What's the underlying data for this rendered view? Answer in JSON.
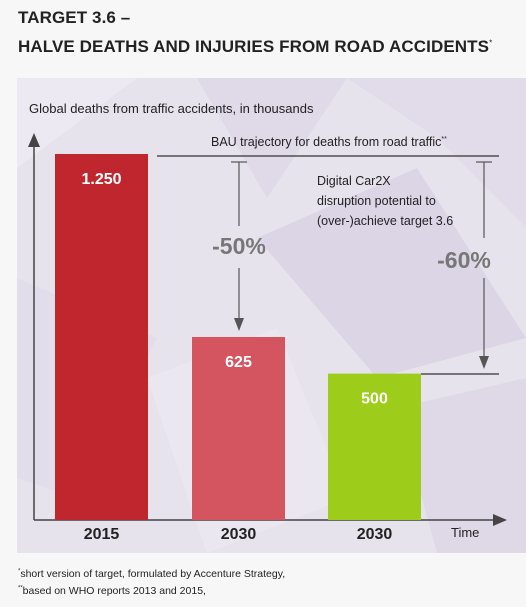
{
  "header": {
    "line1": "TARGET 3.6 –",
    "line2": "HALVE DEATHS AND INJURIES FROM ROAD ACCIDENTS",
    "line2_mark": "*"
  },
  "chart_data": {
    "type": "bar",
    "ylabel": "Global deaths from traffic accidents, in thousands",
    "xlabel": "Time",
    "categories": [
      "2015",
      "2030",
      "2030"
    ],
    "values": [
      1250,
      625,
      500
    ],
    "value_labels": [
      "1.250",
      "625",
      "500"
    ],
    "bar_colors": [
      "#c0262d",
      "#d45560",
      "#9dcc1a"
    ],
    "ylim": [
      0,
      1250
    ],
    "annotations": {
      "bau_label": "BAU trajectory for deaths from road traffic",
      "bau_mark": "**",
      "reduction_50": "-50%",
      "reduction_60": "-60%",
      "car2x_lines": [
        "Digital Car2X",
        "disruption potential to",
        "(over-)achieve target 3.6"
      ]
    }
  },
  "footnotes": {
    "note1_mark": "*",
    "note1": "short version of target, formulated by Accenture Strategy,",
    "note2_mark": "**",
    "note2": "based on WHO reports 2013 and 2015,"
  }
}
